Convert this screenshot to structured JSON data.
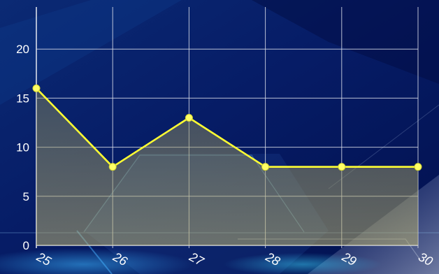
{
  "chart_data": {
    "type": "area",
    "title": "",
    "xlabel": "",
    "ylabel": "",
    "categories": [
      "25",
      "26",
      "27",
      "28",
      "29",
      "30"
    ],
    "series": [
      {
        "values": [
          16,
          8,
          13,
          8,
          8,
          8
        ]
      }
    ],
    "ylim": [
      0,
      25
    ],
    "yticks": [
      "0",
      "5",
      "10",
      "15",
      "20"
    ],
    "grid": true,
    "legend": "none",
    "colors": {
      "line": "#ffff33",
      "marker": "#ffff66",
      "grid": "#d8dce8",
      "background_top": "#03135a",
      "background_bottom": "#0a3a8a"
    }
  }
}
